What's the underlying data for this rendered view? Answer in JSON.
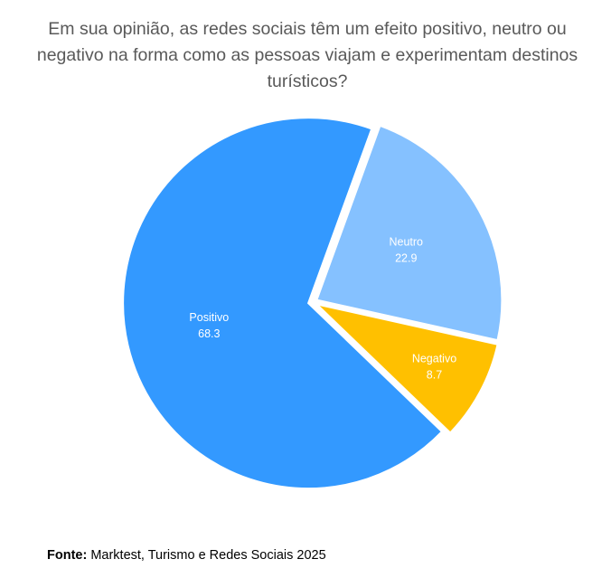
{
  "chart_data": {
    "type": "pie",
    "title": "Em sua opinião, as redes sociais têm um efeito positivo, neutro ou negativo na forma como as pessoas viajam e experimentam destinos turísticos?",
    "categories": [
      "Positivo",
      "Neutro",
      "Negativo"
    ],
    "values": [
      68.3,
      22.9,
      8.7
    ],
    "colors": [
      "#3399ff",
      "#85c1ff",
      "#ffc000"
    ],
    "source_label": "Fonte:",
    "source": "Marktest, Turismo e Redes Sociais 2025"
  }
}
